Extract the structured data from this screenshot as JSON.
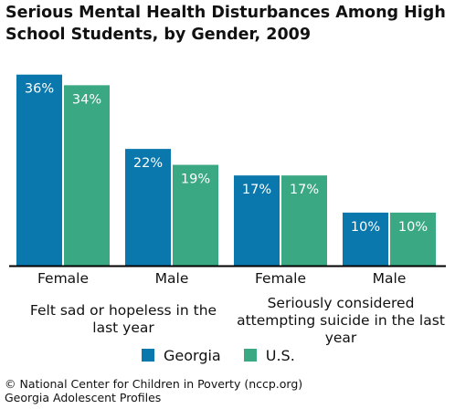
{
  "title": {
    "line1": "Serious Mental Health Disturbances Among High",
    "line2": "School Students, by Gender, 2009"
  },
  "colors": {
    "georgia": "#0a78ad",
    "us": "#3aa882",
    "axis": "#000000"
  },
  "chart_data": {
    "type": "bar",
    "title": "Serious Mental Health Disturbances Among High School Students, by Gender, 2009",
    "categories": [
      "Female",
      "Male",
      "Female",
      "Male"
    ],
    "groups": [
      {
        "label_line1": "Felt sad or hopeless in the",
        "label_line2": "last year",
        "categories": [
          "Female",
          "Male"
        ]
      },
      {
        "label_line1": "Seriously considered",
        "label_line2": "attempting suicide in the last",
        "label_line3": "year",
        "categories": [
          "Female",
          "Male"
        ]
      }
    ],
    "series": [
      {
        "name": "Georgia",
        "values": [
          36,
          22,
          17,
          10
        ],
        "labels": [
          "36%",
          "22%",
          "17%",
          "10%"
        ]
      },
      {
        "name": "U.S.",
        "values": [
          34,
          19,
          17,
          10
        ],
        "labels": [
          "34%",
          "19%",
          "17%",
          "10%"
        ]
      }
    ],
    "ylim": [
      0,
      37.5
    ],
    "grid": false,
    "legend": "bottom"
  },
  "source": {
    "line1": "© National Center for Children in Poverty (nccp.org)",
    "line2": "Georgia Adolescent Profiles"
  }
}
